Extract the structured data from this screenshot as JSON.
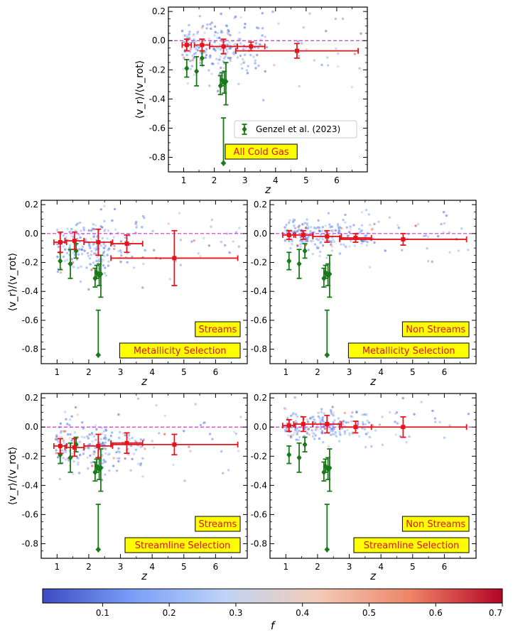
{
  "chart_data": {
    "type": "scatter",
    "x_range": [
      0.5,
      7.0
    ],
    "y_range": [
      -0.9,
      0.23
    ],
    "x_ticks": [
      1,
      2,
      3,
      4,
      5,
      6
    ],
    "y_ticks": [
      -0.8,
      -0.6,
      -0.4,
      -0.2,
      0.0,
      0.2
    ],
    "xlabel": "z",
    "ylabel": "⟨v_r⟩/⟨v_rot⟩",
    "reference_line": {
      "y": 0.0,
      "color": "#cc33cc",
      "style": "dashed"
    },
    "colorbar": {
      "label": "f",
      "range": [
        0.01,
        0.7
      ],
      "ticks": [
        "0.1",
        "0.2",
        "0.3",
        "0.4",
        "0.5",
        "0.6",
        "0.7"
      ],
      "colormap": "coolwarm"
    },
    "genzel": {
      "label": "Genzel et al. (2023)",
      "color": "#1a7a1a",
      "points": [
        {
          "z": 1.1,
          "y": -0.19,
          "err_lo": 0.06,
          "err_hi": 0.06
        },
        {
          "z": 1.42,
          "y": -0.21,
          "err_lo": 0.1,
          "err_hi": 0.1
        },
        {
          "z": 1.6,
          "y": -0.12,
          "err_lo": 0.05,
          "err_hi": 0.05
        },
        {
          "z": 2.2,
          "y": -0.31,
          "err_lo": 0.06,
          "err_hi": 0.07
        },
        {
          "z": 2.25,
          "y": -0.27,
          "err_lo": 0.04,
          "err_hi": 0.05
        },
        {
          "z": 2.3,
          "y": -0.84,
          "err_lo": 0.0,
          "err_hi": 0.31
        },
        {
          "z": 2.33,
          "y": -0.29,
          "err_lo": 0.07,
          "err_hi": 0.08
        },
        {
          "z": 2.38,
          "y": -0.28,
          "err_lo": 0.16,
          "err_hi": 0.13
        }
      ]
    },
    "panels": [
      {
        "id": "all",
        "labels": [
          "All Cold Gas"
        ],
        "show_legend": true,
        "show_ylabel": true,
        "binned": [
          {
            "z": 1.1,
            "y": -0.03,
            "xerr": 0.15,
            "yerr": 0.04
          },
          {
            "z": 1.6,
            "y": -0.03,
            "xerr": 0.25,
            "yerr": 0.04
          },
          {
            "z": 2.3,
            "y": -0.04,
            "xerr": 0.45,
            "yerr": 0.05
          },
          {
            "z": 3.2,
            "y": -0.04,
            "xerr": 0.45,
            "yerr": 0.03
          },
          {
            "z": 4.7,
            "y": -0.07,
            "xerr": 2.0,
            "yerr": 0.05
          }
        ],
        "scatter": {
          "mean": -0.05,
          "spread": 0.09
        }
      },
      {
        "id": "streams_metal",
        "labels": [
          "Streams",
          "Metallicity Selection"
        ],
        "show_legend": false,
        "show_ylabel": true,
        "binned": [
          {
            "z": 1.1,
            "y": -0.06,
            "xerr": 0.2,
            "yerr": 0.07
          },
          {
            "z": 1.55,
            "y": -0.05,
            "xerr": 0.3,
            "yerr": 0.06
          },
          {
            "z": 2.3,
            "y": -0.06,
            "xerr": 0.45,
            "yerr": 0.09
          },
          {
            "z": 3.2,
            "y": -0.07,
            "xerr": 0.5,
            "yerr": 0.06
          },
          {
            "z": 4.7,
            "y": -0.17,
            "xerr": 2.0,
            "yerr": 0.19
          }
        ],
        "scatter": {
          "mean": -0.08,
          "spread": 0.1
        }
      },
      {
        "id": "nonstreams_metal",
        "labels": [
          "Non Streams",
          "Metallicity Selection"
        ],
        "show_legend": false,
        "show_ylabel": false,
        "binned": [
          {
            "z": 1.1,
            "y": -0.01,
            "xerr": 0.2,
            "yerr": 0.03
          },
          {
            "z": 1.55,
            "y": -0.01,
            "xerr": 0.3,
            "yerr": 0.03
          },
          {
            "z": 2.3,
            "y": -0.02,
            "xerr": 0.45,
            "yerr": 0.04
          },
          {
            "z": 3.2,
            "y": -0.03,
            "xerr": 0.5,
            "yerr": 0.03
          },
          {
            "z": 4.7,
            "y": -0.04,
            "xerr": 2.0,
            "yerr": 0.04
          }
        ],
        "scatter": {
          "mean": -0.01,
          "spread": 0.06
        }
      },
      {
        "id": "streams_streamline",
        "labels": [
          "Streams",
          "Streamline Selection"
        ],
        "show_legend": false,
        "show_ylabel": true,
        "binned": [
          {
            "z": 1.1,
            "y": -0.13,
            "xerr": 0.2,
            "yerr": 0.05
          },
          {
            "z": 1.55,
            "y": -0.14,
            "xerr": 0.3,
            "yerr": 0.06
          },
          {
            "z": 2.3,
            "y": -0.13,
            "xerr": 0.45,
            "yerr": 0.08
          },
          {
            "z": 3.2,
            "y": -0.11,
            "xerr": 0.5,
            "yerr": 0.07
          },
          {
            "z": 4.7,
            "y": -0.12,
            "xerr": 2.0,
            "yerr": 0.07
          }
        ],
        "scatter": {
          "mean": -0.13,
          "spread": 0.1
        }
      },
      {
        "id": "nonstreams_streamline",
        "labels": [
          "Non Streams",
          "Streamline Selection"
        ],
        "show_legend": false,
        "show_ylabel": false,
        "binned": [
          {
            "z": 1.1,
            "y": 0.01,
            "xerr": 0.2,
            "yerr": 0.04
          },
          {
            "z": 1.55,
            "y": 0.02,
            "xerr": 0.3,
            "yerr": 0.05
          },
          {
            "z": 2.3,
            "y": 0.02,
            "xerr": 0.45,
            "yerr": 0.06
          },
          {
            "z": 3.2,
            "y": 0.0,
            "xerr": 0.5,
            "yerr": 0.04
          },
          {
            "z": 4.7,
            "y": 0.0,
            "xerr": 2.0,
            "yerr": 0.07
          }
        ],
        "scatter": {
          "mean": 0.01,
          "spread": 0.06
        }
      }
    ]
  }
}
